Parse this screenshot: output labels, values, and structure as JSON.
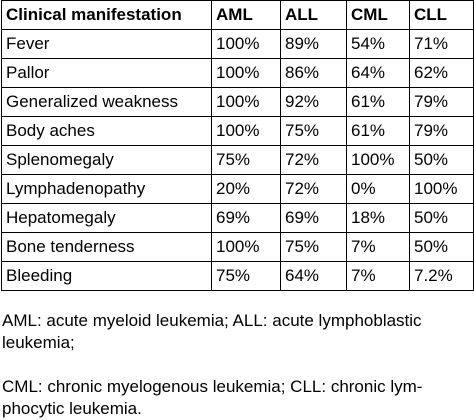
{
  "table": {
    "headers": [
      "Clinical manifestation",
      "AML",
      "ALL",
      "CML",
      "CLL"
    ],
    "rows": [
      [
        "Fever",
        "100%",
        "89%",
        "54%",
        "71%"
      ],
      [
        "Pallor",
        "100%",
        "86%",
        "64%",
        "62%"
      ],
      [
        "Generalized weakness",
        "100%",
        "92%",
        "61%",
        "79%"
      ],
      [
        "Body aches",
        "100%",
        "75%",
        "61%",
        "79%"
      ],
      [
        "Splenomegaly",
        "75%",
        "72%",
        "100%",
        "50%"
      ],
      [
        "Lymphadenopathy",
        "20%",
        "72%",
        "0%",
        "100%"
      ],
      [
        "Hepatomegaly",
        "69%",
        "69%",
        "18%",
        "50%"
      ],
      [
        "Bone tenderness",
        "100%",
        "75%",
        "7%",
        "50%"
      ],
      [
        "Bleeding",
        "75%",
        "64%",
        "7%",
        "7.2%"
      ]
    ]
  },
  "notes": {
    "line1": "AML: acute myeloid leukemia; ALL: acute lymphoblastic",
    "line2": "leukemia;",
    "line3": "CML: chronic myelogenous leukemia; CLL: chronic lym-",
    "line4": "phocytic leukemia."
  }
}
